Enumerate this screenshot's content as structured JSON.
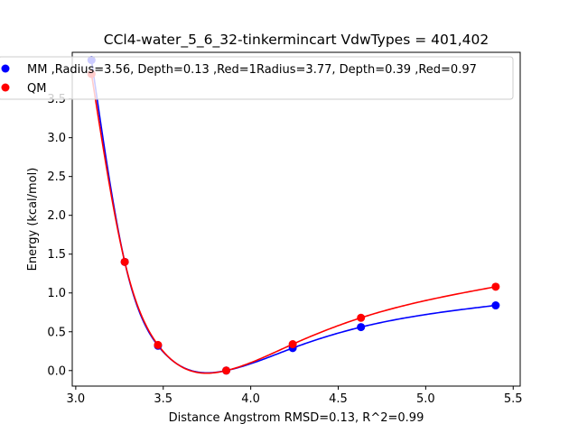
{
  "chart_data": {
    "type": "line",
    "title": "CCl4-water_5_6_32-tinkermincart VdwTypes = 401,402",
    "xlabel": "Distance Angstrom RMSD=0.13, R^2=0.99",
    "ylabel": "Energy (kcal/mol)",
    "xlim": [
      2.98,
      5.54
    ],
    "ylim": [
      -0.2,
      4.1
    ],
    "xticks": [
      3.0,
      3.5,
      4.0,
      4.5,
      5.0,
      5.5
    ],
    "xtick_labels": [
      "3.0",
      "3.5",
      "4.0",
      "4.5",
      "5.0",
      "5.5"
    ],
    "yticks": [
      0.0,
      0.5,
      1.0,
      1.5,
      2.0,
      2.5,
      3.0,
      3.5
    ],
    "ytick_labels": [
      "0.0",
      "0.5",
      "1.0",
      "1.5",
      "2.0",
      "2.5",
      "3.0",
      "3.5"
    ],
    "grid": false,
    "legend_position": "top",
    "series": [
      {
        "name": "MM ,Radius=3.56, Depth=0.13 ,Red=1Radius=3.77, Depth=0.39 ,Red=0.97",
        "color": "#0000ff",
        "x": [
          3.09,
          3.28,
          3.47,
          3.86,
          4.24,
          4.63,
          5.4
        ],
        "y": [
          4.0,
          1.4,
          0.32,
          0.0,
          0.29,
          0.56,
          0.84
        ]
      },
      {
        "name": "QM",
        "color": "#ff0000",
        "x": [
          3.09,
          3.28,
          3.47,
          3.86,
          4.24,
          4.63,
          5.4
        ],
        "y": [
          3.82,
          1.4,
          0.33,
          0.0,
          0.34,
          0.68,
          1.08
        ]
      }
    ]
  }
}
